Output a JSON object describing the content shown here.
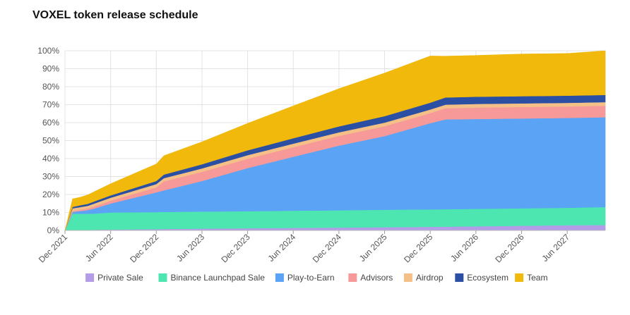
{
  "chart_data": {
    "type": "area",
    "stacked": true,
    "title": "VOXEL token release schedule",
    "xlabel": "",
    "ylabel": "",
    "ylim": [
      0,
      100
    ],
    "y_ticks": [
      "0%",
      "10%",
      "20%",
      "30%",
      "40%",
      "50%",
      "60%",
      "70%",
      "80%",
      "90%",
      "100%"
    ],
    "x_ticks": [
      "Dec 2021",
      "Jun 2022",
      "Dec 2022",
      "Jun 2023",
      "Dec 2023",
      "Jun 2024",
      "Dec 2024",
      "Jun 2025",
      "Dec 2025",
      "Jun 2026",
      "Dec 2026",
      "Jun 2027"
    ],
    "grid": true,
    "legend_position": "bottom",
    "x": [
      "2021-12",
      "2022-01",
      "2022-02",
      "2022-03",
      "2022-04",
      "2022-06",
      "2022-09",
      "2022-12",
      "2023-01",
      "2023-06",
      "2023-12",
      "2024-06",
      "2024-12",
      "2025-06",
      "2025-12",
      "2026-02",
      "2026-06",
      "2026-12",
      "2027-06",
      "2027-11"
    ],
    "series": [
      {
        "name": "Private Sale",
        "color": "#b39ce8",
        "values": [
          0,
          0.3,
          0.3,
          0.3,
          0.4,
          0.5,
          0.6,
          0.7,
          0.8,
          1.0,
          1.2,
          1.4,
          1.6,
          1.8,
          2.0,
          2.1,
          2.3,
          2.6,
          2.9,
          3.0
        ]
      },
      {
        "name": "Binance Launchpad Sale",
        "color": "#4de6b1",
        "values": [
          0,
          9.0,
          9.0,
          9.0,
          9.0,
          9.5,
          9.5,
          9.5,
          9.5,
          9.5,
          9.5,
          9.6,
          9.6,
          9.7,
          9.7,
          9.7,
          9.7,
          9.7,
          9.7,
          10.0
        ]
      },
      {
        "name": "Play-to-Earn",
        "color": "#5ba4f5",
        "values": [
          0,
          1.0,
          1.5,
          2.0,
          3.0,
          5.0,
          8.0,
          11.0,
          12.0,
          17.0,
          24.0,
          30.0,
          36.0,
          41.0,
          48.0,
          50.0,
          50.0,
          50.0,
          50.0,
          50.0
        ]
      },
      {
        "name": "Advisors",
        "color": "#f79999",
        "values": [
          0,
          0.5,
          0.7,
          0.9,
          1.2,
          1.6,
          2.2,
          2.8,
          5.0,
          5.1,
          5.2,
          5.3,
          5.4,
          5.5,
          5.6,
          6.2,
          6.4,
          6.4,
          6.4,
          6.4
        ]
      },
      {
        "name": "Airdrop",
        "color": "#f5c088",
        "values": [
          0,
          1.5,
          1.5,
          1.5,
          1.6,
          1.6,
          1.7,
          1.8,
          1.8,
          1.9,
          2.0,
          2.0,
          2.0,
          2.0,
          2.0,
          2.0,
          2.0,
          2.0,
          2.0,
          2.0
        ]
      },
      {
        "name": "Ecosystem",
        "color": "#2a4fa3",
        "values": [
          0,
          0.8,
          1.0,
          1.1,
          1.2,
          1.3,
          1.5,
          1.7,
          2.0,
          2.3,
          2.7,
          3.0,
          3.3,
          3.6,
          3.8,
          4.0,
          4.0,
          4.0,
          4.0,
          4.0
        ]
      },
      {
        "name": "Team",
        "color": "#f0b90b",
        "values": [
          0,
          4.5,
          4.5,
          5.0,
          5.5,
          6.5,
          8.0,
          9.5,
          10.5,
          12.5,
          15.0,
          18.0,
          21.0,
          24.0,
          26.0,
          23.0,
          23.0,
          23.5,
          23.5,
          24.6
        ]
      }
    ]
  }
}
